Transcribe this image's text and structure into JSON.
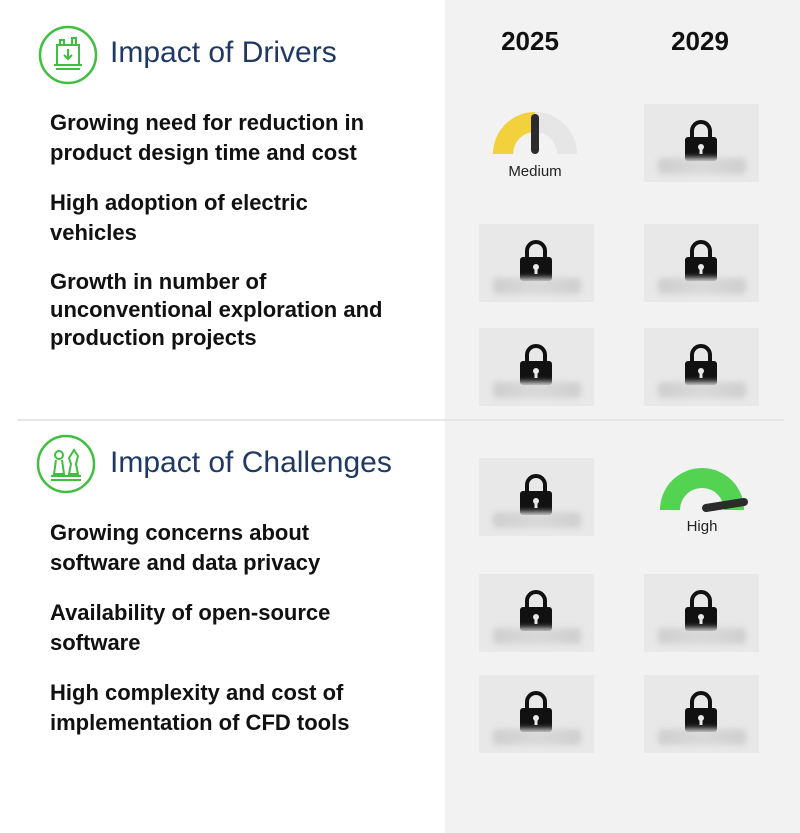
{
  "years": [
    "2025",
    "2029"
  ],
  "drivers": {
    "title": "Impact of Drivers",
    "icon": "factory-icon",
    "items": [
      {
        "lines": [
          "Growing need for reduction in",
          "product design time and cost"
        ]
      },
      {
        "lines": [
          "High adoption of electric",
          "vehicles"
        ]
      },
      {
        "lines": [
          "Growth in number of",
          "unconventional exploration and",
          "production projects"
        ]
      }
    ]
  },
  "challenges": {
    "title": "Impact of Challenges",
    "icon": "chess-pieces-icon",
    "items": [
      {
        "lines": [
          "Growing concerns about",
          "software and data privacy"
        ]
      },
      {
        "lines": [
          "Availability of open-source",
          "software"
        ]
      },
      {
        "lines": [
          "High complexity and cost of",
          "implementation of CFD tools"
        ]
      }
    ]
  },
  "ratings": {
    "medium_label": "Medium",
    "high_label": "High",
    "medium_color": "#f2d13d",
    "high_color": "#53d351",
    "lock_icon": "lock-icon"
  },
  "colors": {
    "title": "#1f3864",
    "accent": "#3fbf3f",
    "panel": "#f2f2f2"
  }
}
